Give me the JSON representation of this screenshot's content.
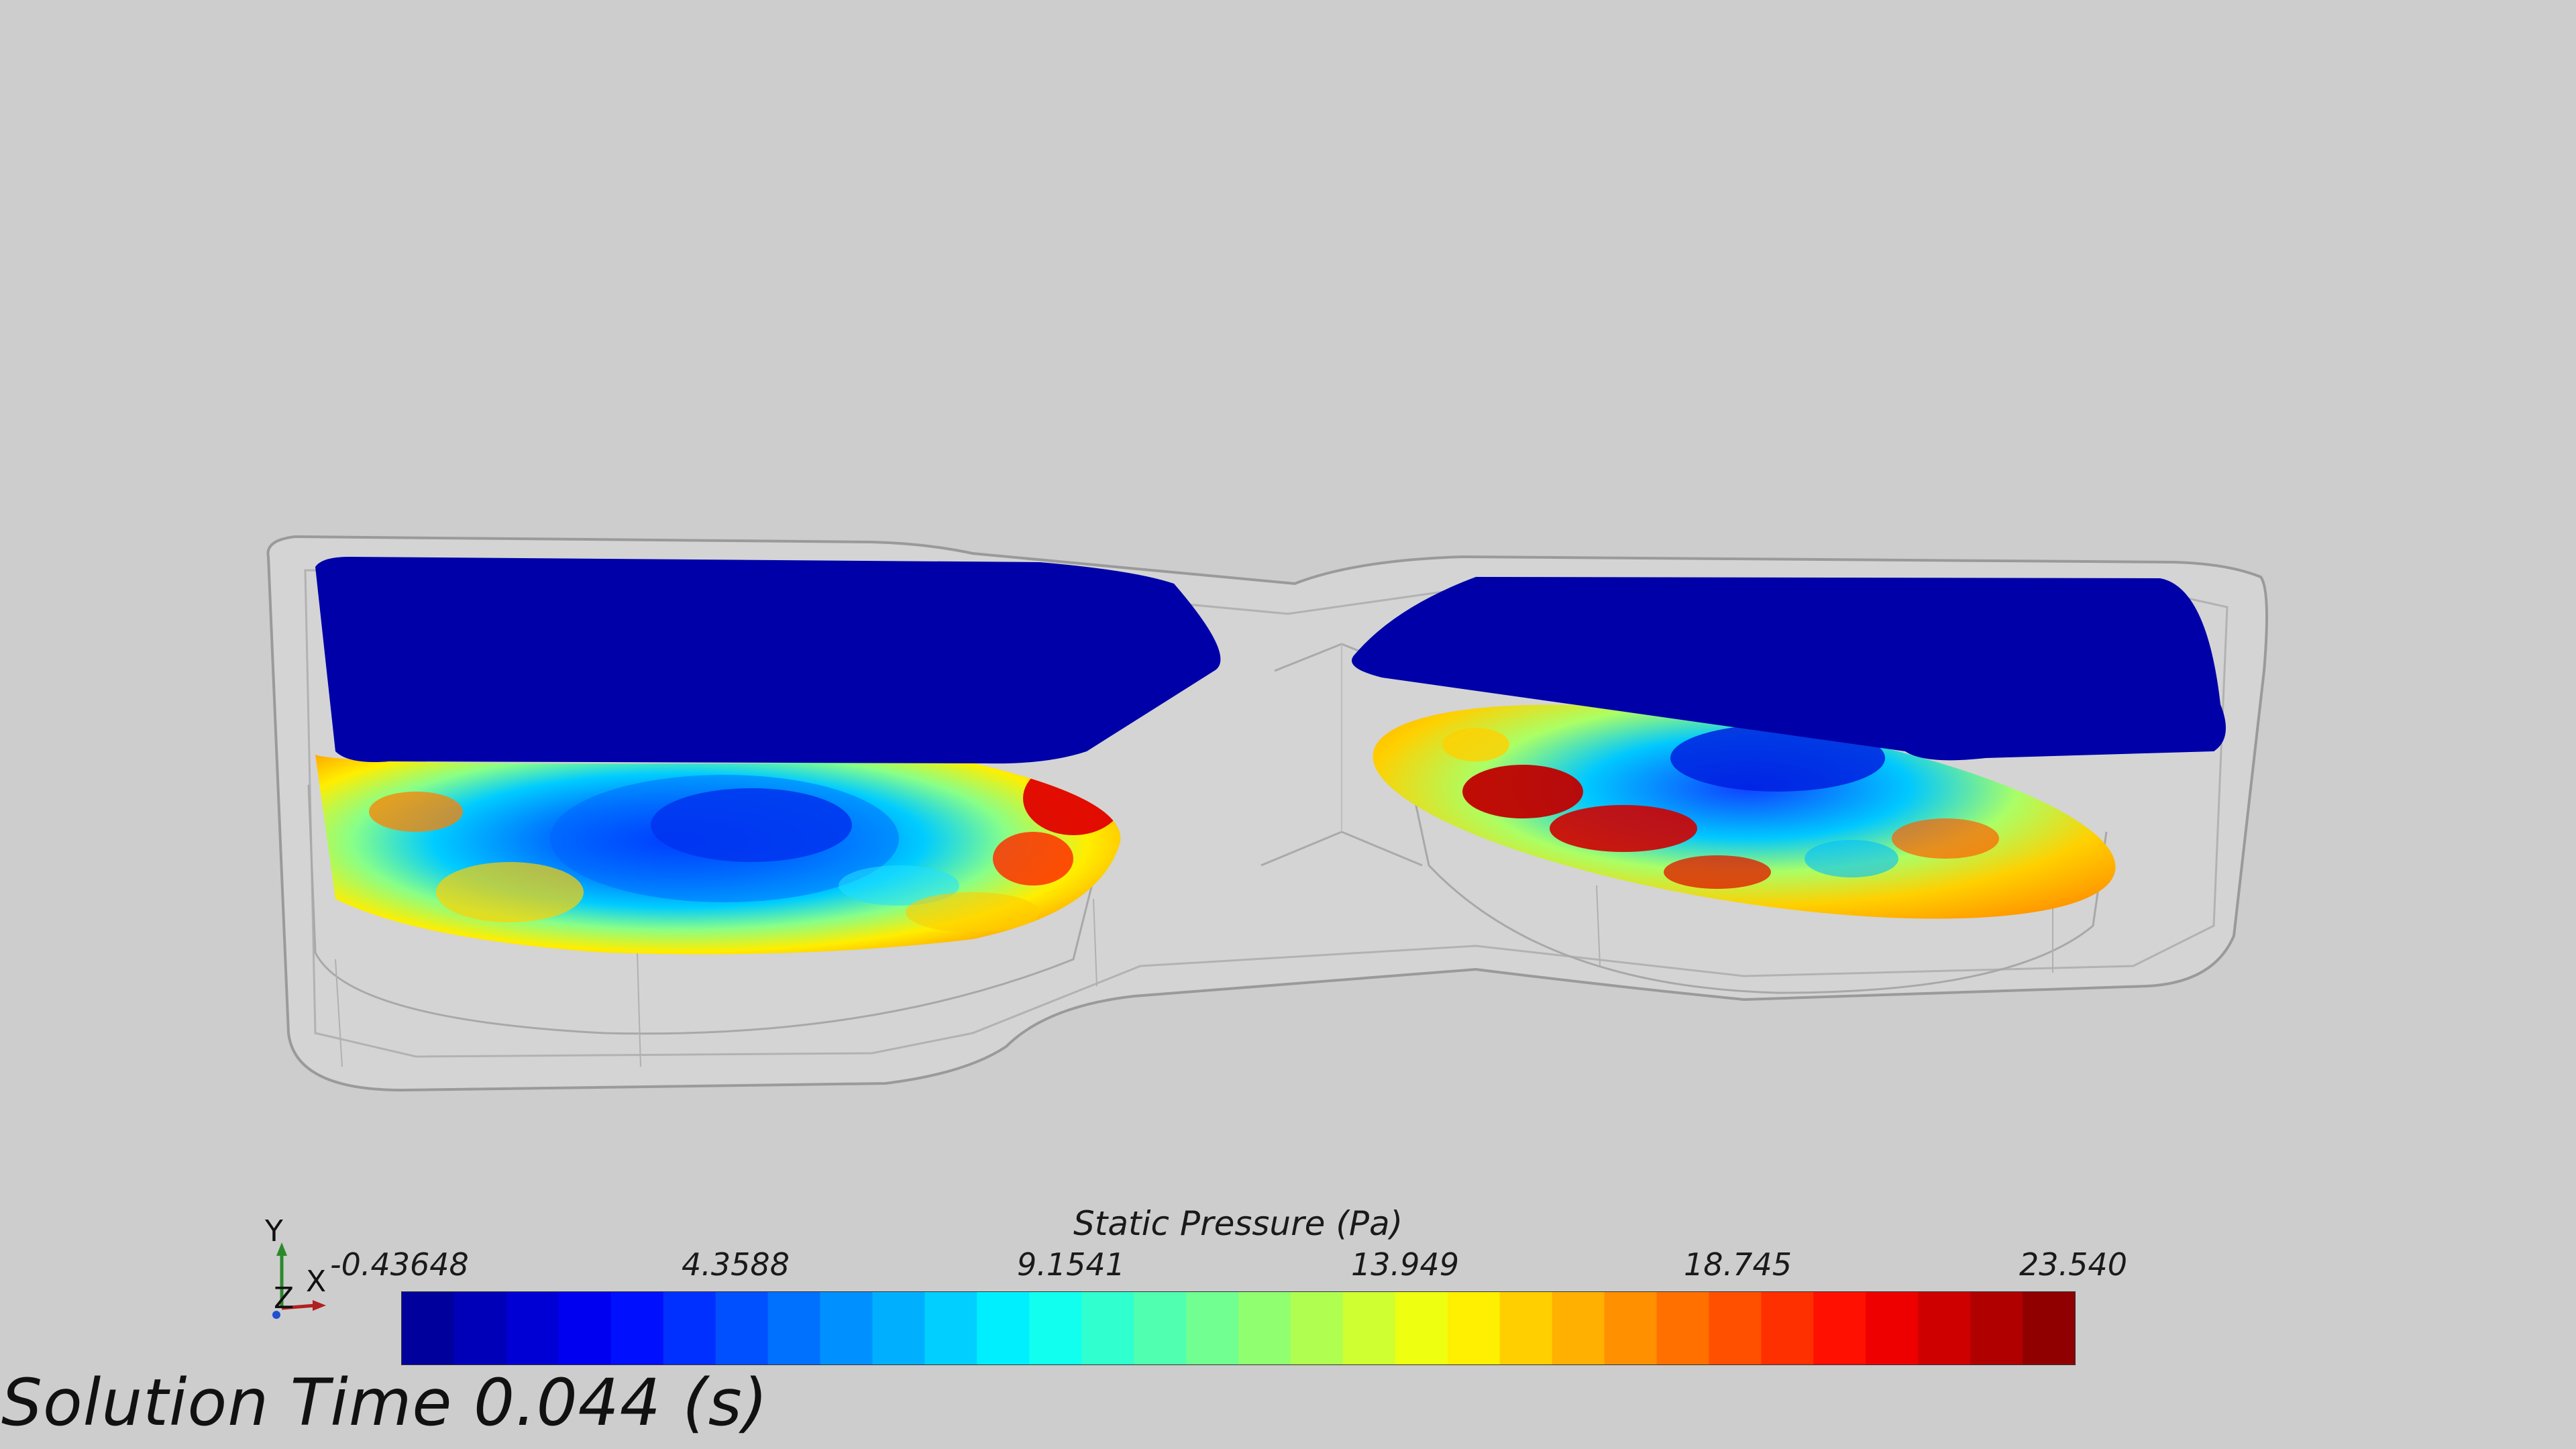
{
  "scalar_bar": {
    "title": "Static Pressure (Pa)",
    "ticks": [
      "-0.43648",
      "4.3588",
      "9.1541",
      "13.949",
      "18.745",
      "23.540"
    ],
    "colormap_stops": [
      "#00008f",
      "#0000ff",
      "#0080ff",
      "#00ffff",
      "#80ff80",
      "#ffff00",
      "#ff8000",
      "#ff0000",
      "#800000"
    ],
    "num_bands": 32
  },
  "triad": {
    "y_label": "Y",
    "z_label": "Z",
    "x_label": "X"
  },
  "annotation": {
    "solution_time": "Solution Time 0.044 (s)"
  },
  "scene": {
    "background": "#cdcdcd",
    "lid_color": "#0000a8"
  }
}
